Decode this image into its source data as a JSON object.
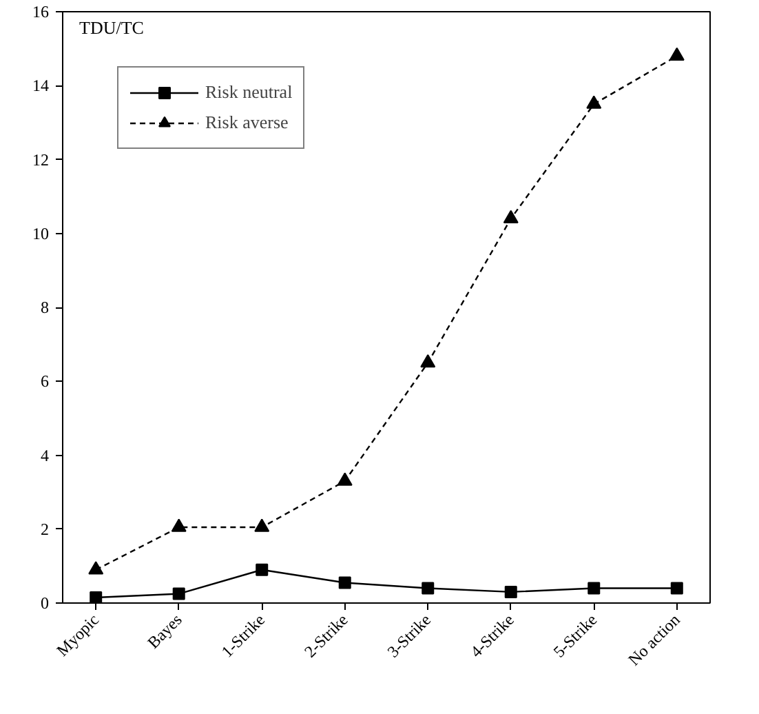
{
  "chart_data": {
    "type": "line",
    "ylabel": "TDU/TC",
    "categories": [
      "Myopic",
      "Bayes",
      "1-Strike",
      "2-Strike",
      "3-Strike",
      "4-Strike",
      "5-Strike",
      "No action"
    ],
    "series": [
      {
        "name": "Risk neutral",
        "color": "#000000",
        "marker": "square",
        "line_style": "solid",
        "values": [
          0.15,
          0.25,
          0.9,
          0.55,
          0.4,
          0.3,
          0.4,
          0.4
        ]
      },
      {
        "name": "Risk averse",
        "color": "#000000",
        "marker": "triangle",
        "line_style": "dashed",
        "values": [
          0.9,
          2.05,
          2.05,
          3.3,
          6.5,
          10.4,
          13.5,
          14.8
        ]
      }
    ],
    "ylim": [
      0,
      16
    ],
    "yticks": [
      0,
      2,
      4,
      6,
      8,
      10,
      12,
      14,
      16
    ],
    "grid": false,
    "legend": "top left"
  }
}
